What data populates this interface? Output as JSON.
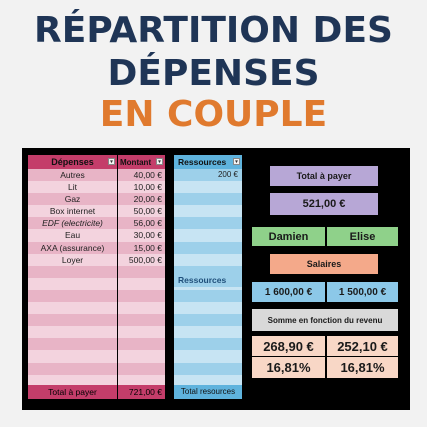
{
  "title": {
    "line1": "RÉPARTITION DES",
    "line2": "DÉPENSES",
    "line3": "EN COUPLE"
  },
  "depenses": {
    "header_label": "Dépenses",
    "header_amount": "Montant",
    "rows": [
      {
        "label": "Autres",
        "amount": "40,00 €"
      },
      {
        "label": "Lit",
        "amount": "10,00 €"
      },
      {
        "label": "Gaz",
        "amount": "20,00 €"
      },
      {
        "label": "Box internet",
        "amount": "50,00 €"
      },
      {
        "label": "EDF (electricite)",
        "amount": "56,00 €"
      },
      {
        "label": "Eau",
        "amount": "30,00 €"
      },
      {
        "label": "AXA (assurance)",
        "amount": "15,00 €"
      },
      {
        "label": "Loyer",
        "amount": "500,00 €"
      }
    ],
    "total_label": "Total à payer",
    "total_amount": "721,00 €"
  },
  "ressources": {
    "header_label": "Ressources",
    "first_value": "200 €",
    "mid_label": "Ressources",
    "total_label": "Total resources"
  },
  "summary": {
    "total_label": "Total à payer",
    "total_value": "521,00 €",
    "person1": "Damien",
    "person2": "Elise",
    "salaires_label": "Salaires",
    "salary1": "1 600,00 €",
    "salary2": "1 500,00 €",
    "somme_label": "Somme en fonction du revenu",
    "share1_amount": "268,90 €",
    "share2_amount": "252,10 €",
    "share1_pct": "16,81%",
    "share2_pct": "16,81%"
  },
  "colors": {
    "title_dark": "#1f3556",
    "title_accent": "#e07a2e",
    "depenses_header": "#c43d6a",
    "ressources_header": "#5fb3dd"
  }
}
